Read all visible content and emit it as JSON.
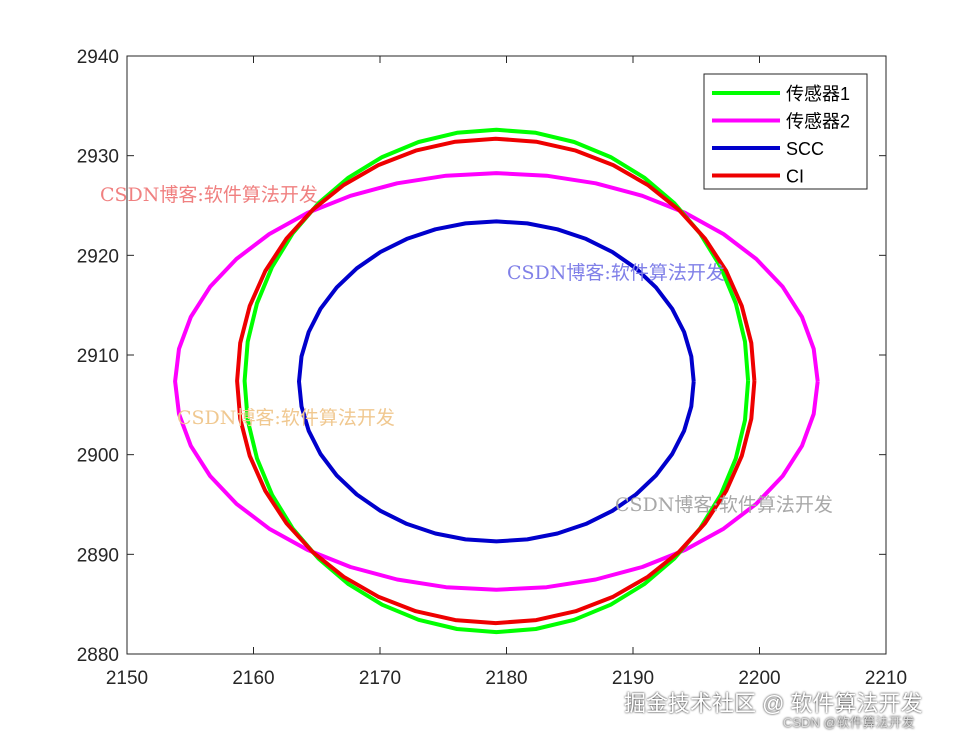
{
  "chart_data": {
    "type": "line",
    "title": "",
    "xlabel": "",
    "ylabel": "",
    "xlim": [
      2150,
      2210
    ],
    "ylim": [
      2880,
      2940
    ],
    "xticks": [
      2150,
      2160,
      2170,
      2180,
      2190,
      2200,
      2210
    ],
    "yticks": [
      2880,
      2890,
      2900,
      2910,
      2920,
      2930,
      2940
    ],
    "grid": false,
    "legend_position": "top-right",
    "series": [
      {
        "name": "传感器1",
        "color": "#00ff00",
        "shape": "ellipse",
        "center": [
          2179.2,
          2907.4
        ],
        "radii": [
          19.9,
          25.2
        ]
      },
      {
        "name": "传感器2",
        "color": "#ff00ff",
        "shape": "ellipse",
        "center": [
          2179.2,
          2907.35
        ],
        "radii": [
          25.4,
          20.9
        ]
      },
      {
        "name": "SCC",
        "color": "#0000cc",
        "shape": "ellipse",
        "center": [
          2179.2,
          2907.35
        ],
        "radii": [
          15.6,
          16.05
        ]
      },
      {
        "name": "CI",
        "color": "#ee0000",
        "shape": "ellipse",
        "center": [
          2179.15,
          2907.4
        ],
        "radii": [
          20.45,
          24.3
        ]
      }
    ]
  },
  "watermarks": [
    {
      "text": "CSDN博客:软件算法开发",
      "color": "#f08080"
    },
    {
      "text": "CSDN博客:软件算法开发",
      "color": "#8080e8"
    },
    {
      "text": "CSDN博客:软件算法开发",
      "color": "#f0c890"
    },
    {
      "text": "CSDN博客:软件算法开发",
      "color": "#a8a8a8"
    }
  ],
  "footer": {
    "main": "掘金技术社区 @ 软件算法开发",
    "sub": "CSDN @软件算法开发"
  }
}
